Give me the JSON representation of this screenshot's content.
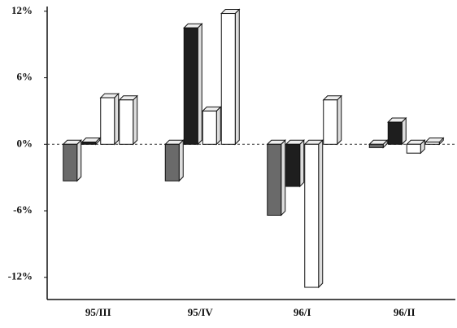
{
  "chart_data": {
    "type": "bar3d",
    "categories": [
      "95/III",
      "95/IV",
      "96/I",
      "96/II"
    ],
    "series": [
      {
        "color": "#6a6a6a",
        "values": [
          -3.3,
          -3.3,
          -6.4,
          -0.3
        ]
      },
      {
        "color": "#1e1e1e",
        "values": [
          0.2,
          10.5,
          -3.8,
          2.0
        ]
      },
      {
        "color": "#ffffff",
        "values": [
          4.2,
          3.0,
          -12.9,
          -0.8
        ]
      },
      {
        "color": "#ffffff",
        "values": [
          4.0,
          11.8,
          4.0,
          0.2
        ]
      }
    ],
    "ylim": [
      -14,
      12.5
    ],
    "yticks": [
      {
        "value": 12,
        "label": "12%"
      },
      {
        "value": 6,
        "label": "6%"
      },
      {
        "value": 0,
        "label": "0%"
      },
      {
        "value": -6,
        "label": "-6%"
      },
      {
        "value": -12,
        "label": "-12%"
      }
    ]
  }
}
